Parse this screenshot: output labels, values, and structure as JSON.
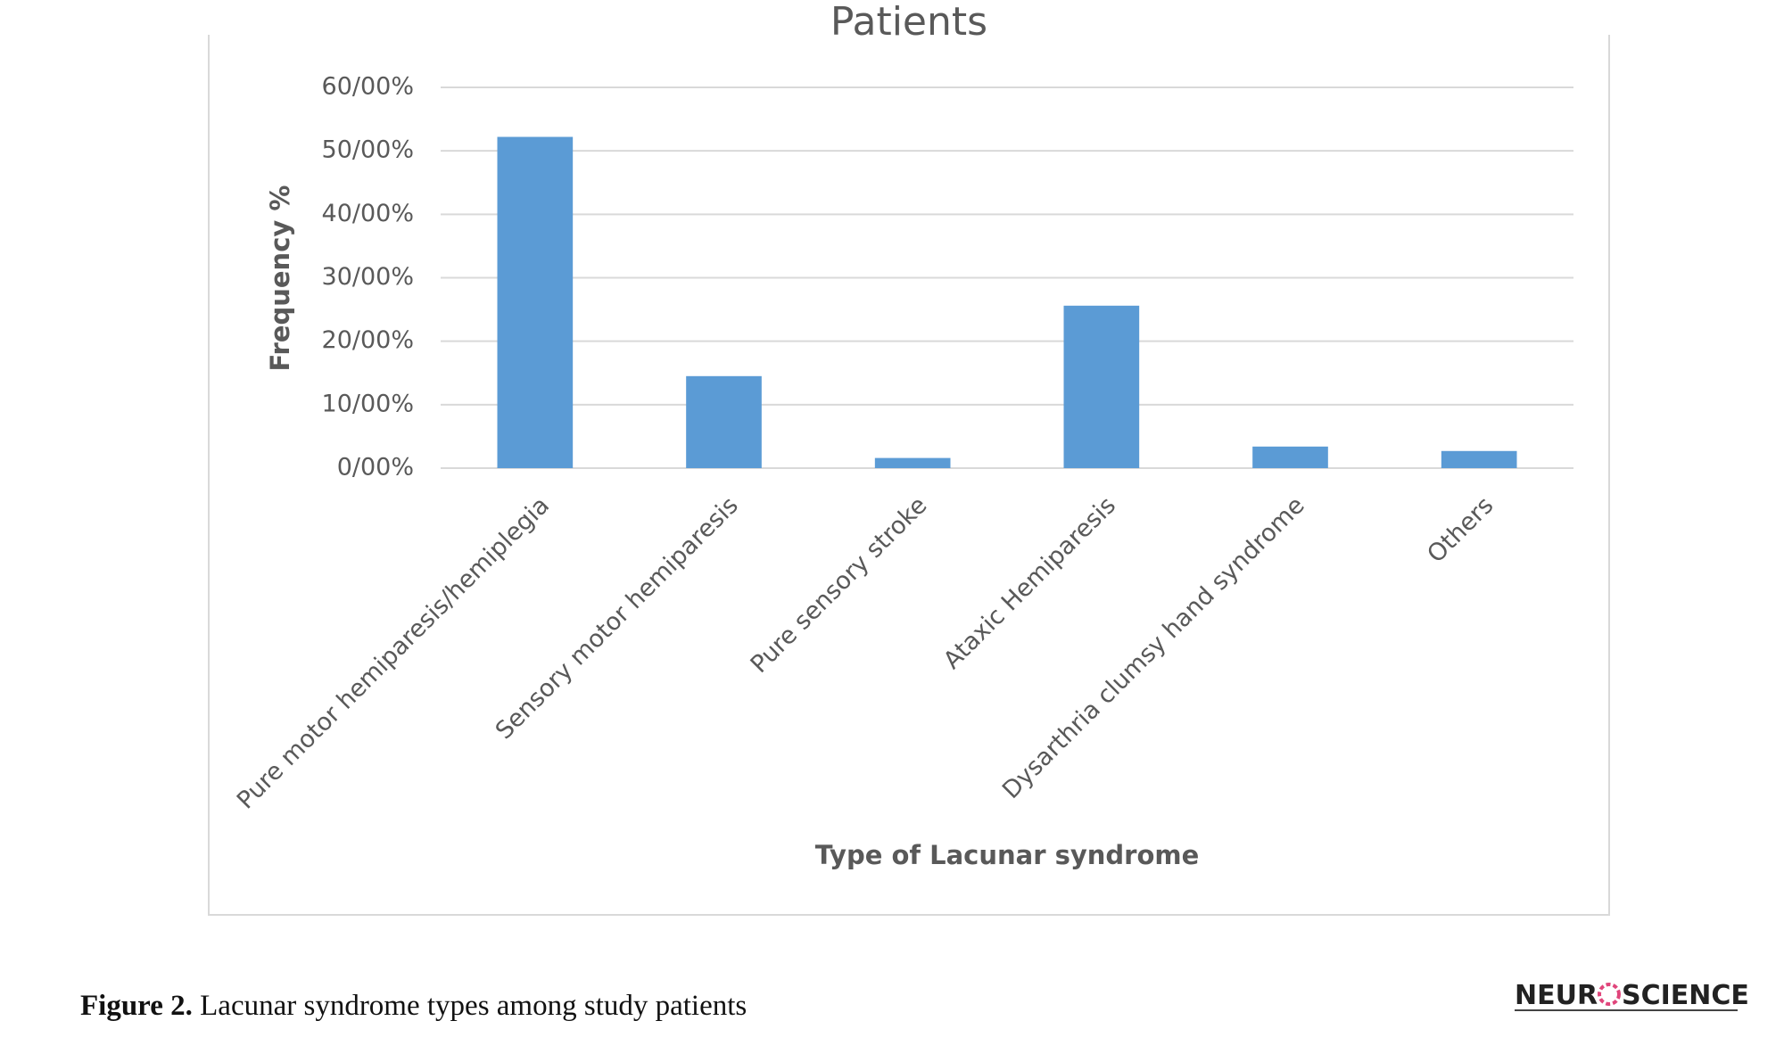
{
  "chart_data": {
    "type": "bar",
    "title": "Patients",
    "categories": [
      "Pure motor hemiparesis/hemiplegia",
      "Sensory motor hemiparesis",
      "Pure sensory stroke",
      "Ataxic Hemiparesis",
      "Dysarthria clumsy hand syndrome",
      "Others"
    ],
    "values": [
      52.2,
      14.5,
      1.6,
      25.6,
      3.4,
      2.7
    ],
    "color": "#5b9bd5",
    "ylim": [
      0,
      60
    ],
    "yticks": [
      {
        "value": 0,
        "label": "0/00%"
      },
      {
        "value": 10,
        "label": "10/00%"
      },
      {
        "value": 20,
        "label": "20/00%"
      },
      {
        "value": 30,
        "label": "30/00%"
      },
      {
        "value": 40,
        "label": "40/00%"
      },
      {
        "value": 50,
        "label": "50/00%"
      },
      {
        "value": 60,
        "label": "60/00%"
      }
    ],
    "grid": true,
    "ylabel": "Frequency %",
    "xlabel": "Type of Lacunar syndrome"
  },
  "caption": {
    "label": "Figure 2.",
    "text": "Lacunar syndrome types among study patients"
  },
  "logo": {
    "left": "NEUR",
    "right": "SCIENCE"
  }
}
